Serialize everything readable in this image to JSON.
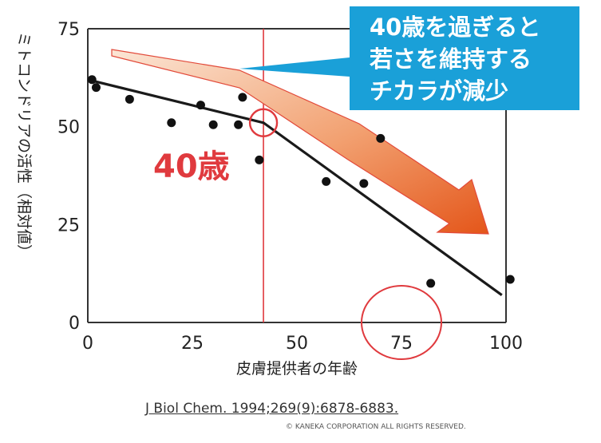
{
  "chart_data": {
    "type": "scatter",
    "xlabel": "皮膚提供者の年齢",
    "ylabel": "ミトコンドリアの活性（相対値）",
    "xlim": [
      0,
      100
    ],
    "ylim": [
      0,
      75
    ],
    "x_ticks": [
      "0",
      "25",
      "50",
      "75",
      "100"
    ],
    "y_ticks": [
      "0",
      "25",
      "50",
      "75"
    ],
    "grid": false,
    "points": [
      {
        "x": 1,
        "y": 62
      },
      {
        "x": 2,
        "y": 60
      },
      {
        "x": 10,
        "y": 57
      },
      {
        "x": 20,
        "y": 51
      },
      {
        "x": 27,
        "y": 55.5
      },
      {
        "x": 30,
        "y": 50.5
      },
      {
        "x": 36,
        "y": 50.5
      },
      {
        "x": 37,
        "y": 57.5
      },
      {
        "x": 41,
        "y": 41.5
      },
      {
        "x": 57,
        "y": 36
      },
      {
        "x": 66,
        "y": 35.5
      },
      {
        "x": 70,
        "y": 47
      },
      {
        "x": 82,
        "y": 10
      },
      {
        "x": 101,
        "y": 11
      }
    ],
    "trend_line": [
      {
        "x": 0,
        "y": 62
      },
      {
        "x": 42,
        "y": 51
      },
      {
        "x": 99,
        "y": 7
      }
    ],
    "breakpoint_x": 42,
    "colors": {
      "points": "#111111",
      "trend": "#1a1a1a",
      "highlight": "#e03a3e",
      "callout_bg": "#1aa0d8",
      "arrow_light": "#fbe3d0",
      "arrow_dark": "#e8601c"
    }
  },
  "annotations": {
    "age_label": "40歳",
    "callout_lines": [
      "40歳を過ぎると",
      "若さを維持する",
      "チカラが減少"
    ]
  },
  "citation": "J Biol Chem. 1994;269(9):6878-6883.",
  "copyright": "© KANEKA CORPORATION ALL RIGHTS RESERVED."
}
